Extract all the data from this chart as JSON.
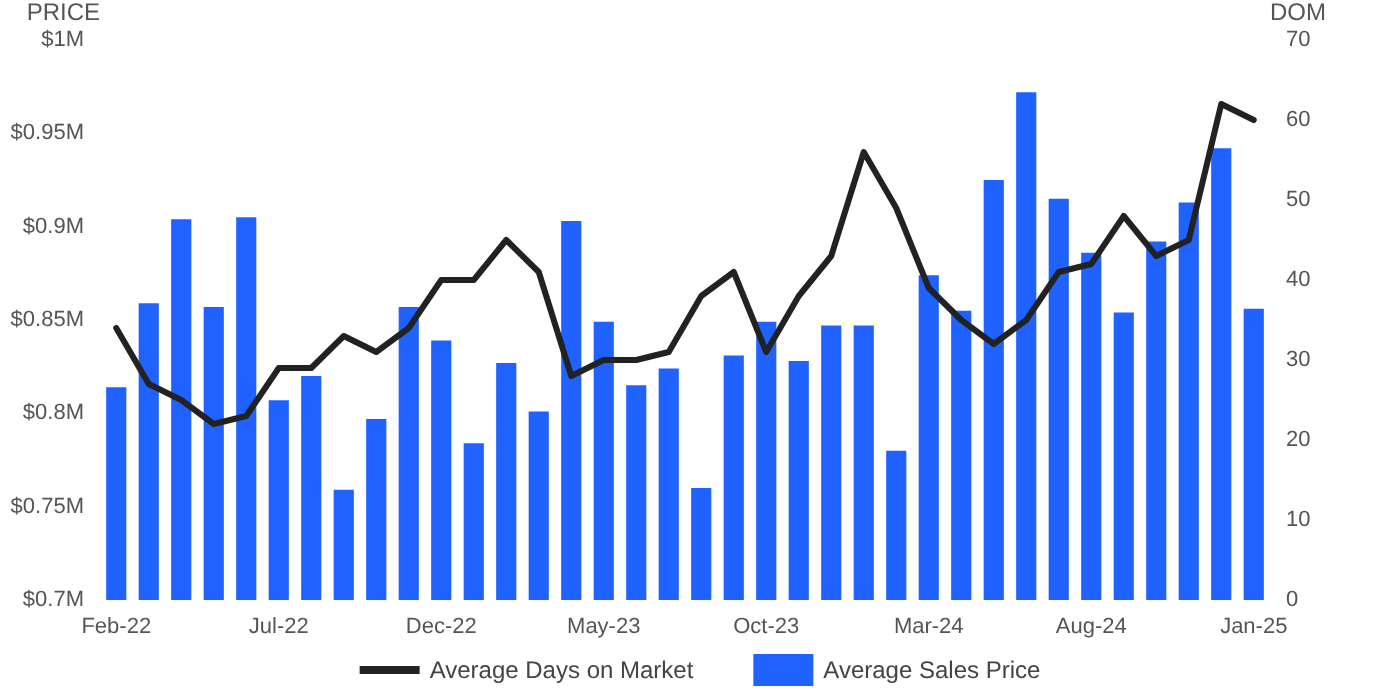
{
  "chart_data": {
    "type": "bar",
    "ylabel": "PRICE",
    "y2label": "DOM",
    "categories": [
      "Feb-22",
      null,
      null,
      null,
      null,
      "Jul-22",
      null,
      null,
      null,
      null,
      "Dec-22",
      null,
      null,
      null,
      null,
      "May-23",
      null,
      null,
      null,
      null,
      "Oct-23",
      null,
      null,
      null,
      null,
      "Mar-24",
      null,
      null,
      null,
      null,
      "Aug-24",
      null,
      null,
      null,
      null,
      "Jan-25"
    ],
    "series": [
      {
        "name": "Average Days on Market",
        "type": "line",
        "axis": "y2",
        "color": "#222222",
        "values": [
          34,
          27,
          25,
          22,
          23,
          29,
          29,
          33,
          31,
          34,
          40,
          40,
          45,
          41,
          28,
          30,
          30,
          31,
          38,
          41,
          31,
          38,
          43,
          56,
          49,
          39,
          35,
          32,
          35,
          41,
          42,
          48,
          43,
          45,
          62,
          60
        ]
      },
      {
        "name": "Average Sales Price",
        "color": "#1f62ff",
        "values": [
          0.814,
          0.859,
          0.904,
          0.857,
          0.905,
          0.807,
          0.82,
          0.759,
          0.797,
          0.857,
          0.839,
          0.784,
          0.827,
          0.801,
          0.903,
          0.849,
          0.815,
          0.824,
          0.76,
          0.831,
          0.849,
          0.828,
          0.847,
          0.847,
          0.78,
          0.874,
          0.855,
          0.925,
          0.972,
          0.915,
          0.886,
          0.854,
          0.892,
          0.913,
          0.942,
          0.856
        ]
      }
    ],
    "ylim": [
      0.7,
      1
    ],
    "yticks": [
      {
        "value": 0.7,
        "label": "$0.7M"
      },
      {
        "value": 0.75,
        "label": "$0.75M"
      },
      {
        "value": 0.8,
        "label": "$0.8M"
      },
      {
        "value": 0.85,
        "label": "$0.85M"
      },
      {
        "value": 0.9,
        "label": "$0.9M"
      },
      {
        "value": 0.95,
        "label": "$0.95M"
      },
      {
        "value": 1,
        "label": "$1M"
      }
    ],
    "y2lim": [
      0,
      70
    ],
    "y2ticks": [
      0,
      10,
      20,
      30,
      40,
      50,
      60,
      70
    ],
    "grid": false,
    "legend": "bottom",
    "marker": "none",
    "line_style": "solid"
  }
}
